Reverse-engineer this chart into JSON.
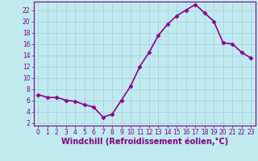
{
  "x": [
    0,
    1,
    2,
    3,
    4,
    5,
    6,
    7,
    8,
    9,
    10,
    11,
    12,
    13,
    14,
    15,
    16,
    17,
    18,
    19,
    20,
    21,
    22,
    23
  ],
  "y": [
    7.0,
    6.5,
    6.5,
    6.0,
    5.8,
    5.2,
    4.8,
    3.0,
    3.5,
    6.0,
    8.5,
    12.0,
    14.5,
    17.5,
    19.5,
    21.0,
    22.0,
    23.0,
    21.5,
    20.0,
    16.2,
    16.0,
    14.5,
    13.5
  ],
  "line_color": "#8b008b",
  "marker": "D",
  "marker_size": 2.5,
  "bg_color": "#c0eaf0",
  "grid_color": "#a8ccd8",
  "xlabel": "Windchill (Refroidissement éolien,°C)",
  "ylim": [
    1.5,
    23.5
  ],
  "xlim": [
    -0.5,
    23.5
  ],
  "yticks": [
    2,
    4,
    6,
    8,
    10,
    12,
    14,
    16,
    18,
    20,
    22
  ],
  "xticks": [
    0,
    1,
    2,
    3,
    4,
    5,
    6,
    7,
    8,
    9,
    10,
    11,
    12,
    13,
    14,
    15,
    16,
    17,
    18,
    19,
    20,
    21,
    22,
    23
  ],
  "tick_color": "#800080",
  "tick_label_size": 5.5,
  "xlabel_size": 7.0,
  "line_width": 1.2
}
